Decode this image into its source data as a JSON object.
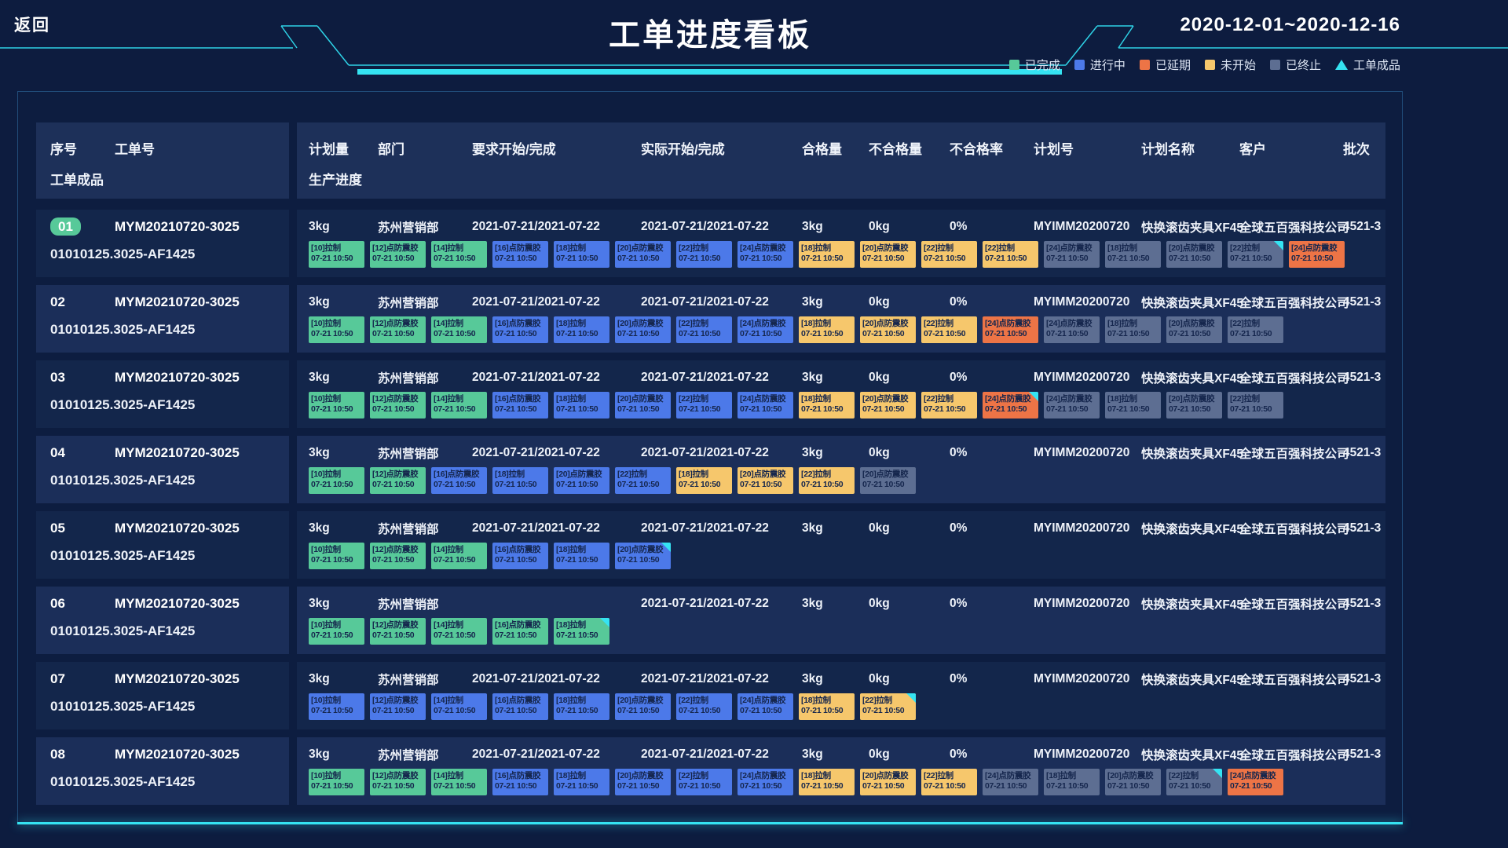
{
  "header": {
    "back": "返回",
    "title": "工单进度看板",
    "date_range": "2020-12-01~2020-12-16"
  },
  "legend": [
    {
      "label": "已完成",
      "color": "#57c999",
      "shape": "square"
    },
    {
      "label": "进行中",
      "color": "#4c79e9",
      "shape": "square"
    },
    {
      "label": "已延期",
      "color": "#ed7446",
      "shape": "square"
    },
    {
      "label": "未开始",
      "color": "#f6c76c",
      "shape": "square"
    },
    {
      "label": "已终止",
      "color": "#5d6e92",
      "shape": "square"
    },
    {
      "label": "工单成品",
      "color": "#35e3f2",
      "shape": "triangle"
    }
  ],
  "table": {
    "left_headers": {
      "seq": "序号",
      "order_no": "工单号",
      "product": "工单成品"
    },
    "progress_header": "生产进度",
    "columns": [
      {
        "key": "plan_qty",
        "label": "计划量"
      },
      {
        "key": "dept",
        "label": "部门"
      },
      {
        "key": "required",
        "label": "要求开始/完成"
      },
      {
        "key": "actual",
        "label": "实际开始/完成"
      },
      {
        "key": "qualified",
        "label": "合格量"
      },
      {
        "key": "unqualified",
        "label": "不合格量"
      },
      {
        "key": "unqualified_rate",
        "label": "不合格率"
      },
      {
        "key": "plan_no",
        "label": "计划号"
      },
      {
        "key": "plan_name",
        "label": "计划名称"
      },
      {
        "key": "customer",
        "label": "客户"
      },
      {
        "key": "batch",
        "label": "批次"
      }
    ],
    "status_colors": {
      "done": "#57c999",
      "doing": "#4c79e9",
      "delayed": "#ed7446",
      "notstarted": "#f6c76c",
      "terminated": "#5d6e92"
    },
    "marker_color": "#35e3f2",
    "step_time": "07-21 10:50",
    "rows": [
      {
        "seq": "01",
        "highlight": true,
        "order_no": "MYM20210720-3025",
        "product": "01010125.3025-AF1425",
        "plan_qty": "3kg",
        "dept": "苏州营销部",
        "required": "2021-07-21/2021-07-22",
        "actual": "2021-07-21/2021-07-22",
        "qualified": "3kg",
        "unqualified": "0kg",
        "unqualified_rate": "0%",
        "plan_no": "MYIMM20200720",
        "plan_name": "快换滚齿夹具XF45",
        "customer": "全球五百强科技公司",
        "batch": "4521-3",
        "steps": [
          {
            "name": "[10]拉制",
            "status": "done"
          },
          {
            "name": "[12]点防震胶",
            "status": "done"
          },
          {
            "name": "[14]拉制",
            "status": "done"
          },
          {
            "name": "[16]点防震胶",
            "status": "doing"
          },
          {
            "name": "[18]拉制",
            "status": "doing"
          },
          {
            "name": "[20]点防震胶",
            "status": "doing"
          },
          {
            "name": "[22]拉制",
            "status": "doing"
          },
          {
            "name": "[24]点防震胶",
            "status": "doing"
          },
          {
            "name": "[18]拉制",
            "status": "notstarted"
          },
          {
            "name": "[20]点防震胶",
            "status": "notstarted"
          },
          {
            "name": "[22]拉制",
            "status": "notstarted"
          },
          {
            "name": "[22]拉制",
            "status": "notstarted"
          },
          {
            "name": "[24]点防震胶",
            "status": "terminated"
          },
          {
            "name": "[18]拉制",
            "status": "terminated"
          },
          {
            "name": "[20]点防震胶",
            "status": "terminated"
          },
          {
            "name": "[22]拉制",
            "status": "terminated",
            "marker": true
          },
          {
            "name": "[24]点防震胶",
            "status": "delayed"
          }
        ]
      },
      {
        "seq": "02",
        "highlight": false,
        "order_no": "MYM20210720-3025",
        "product": "01010125.3025-AF1425",
        "plan_qty": "3kg",
        "dept": "苏州营销部",
        "required": "2021-07-21/2021-07-22",
        "actual": "2021-07-21/2021-07-22",
        "qualified": "3kg",
        "unqualified": "0kg",
        "unqualified_rate": "0%",
        "plan_no": "MYIMM20200720",
        "plan_name": "快换滚齿夹具XF45",
        "customer": "全球五百强科技公司",
        "batch": "4521-3",
        "steps": [
          {
            "name": "[10]拉制",
            "status": "done"
          },
          {
            "name": "[12]点防震胶",
            "status": "done"
          },
          {
            "name": "[14]拉制",
            "status": "done"
          },
          {
            "name": "[16]点防震胶",
            "status": "doing"
          },
          {
            "name": "[18]拉制",
            "status": "doing"
          },
          {
            "name": "[20]点防震胶",
            "status": "doing"
          },
          {
            "name": "[22]拉制",
            "status": "doing"
          },
          {
            "name": "[24]点防震胶",
            "status": "doing"
          },
          {
            "name": "[18]拉制",
            "status": "notstarted"
          },
          {
            "name": "[20]点防震胶",
            "status": "notstarted"
          },
          {
            "name": "[22]拉制",
            "status": "notstarted"
          },
          {
            "name": "[24]点防震胶",
            "status": "delayed"
          },
          {
            "name": "[24]点防震胶",
            "status": "terminated"
          },
          {
            "name": "[18]拉制",
            "status": "terminated"
          },
          {
            "name": "[20]点防震胶",
            "status": "terminated"
          },
          {
            "name": "[22]拉制",
            "status": "terminated"
          }
        ]
      },
      {
        "seq": "03",
        "highlight": false,
        "order_no": "MYM20210720-3025",
        "product": "01010125.3025-AF1425",
        "plan_qty": "3kg",
        "dept": "苏州营销部",
        "required": "2021-07-21/2021-07-22",
        "actual": "2021-07-21/2021-07-22",
        "qualified": "3kg",
        "unqualified": "0kg",
        "unqualified_rate": "0%",
        "plan_no": "MYIMM20200720",
        "plan_name": "快换滚齿夹具XF45",
        "customer": "全球五百强科技公司",
        "batch": "4521-3",
        "steps": [
          {
            "name": "[10]拉制",
            "status": "done"
          },
          {
            "name": "[12]点防震胶",
            "status": "done"
          },
          {
            "name": "[14]拉制",
            "status": "done"
          },
          {
            "name": "[16]点防震胶",
            "status": "doing"
          },
          {
            "name": "[18]拉制",
            "status": "doing"
          },
          {
            "name": "[20]点防震胶",
            "status": "doing"
          },
          {
            "name": "[22]拉制",
            "status": "doing"
          },
          {
            "name": "[24]点防震胶",
            "status": "doing"
          },
          {
            "name": "[18]拉制",
            "status": "notstarted"
          },
          {
            "name": "[20]点防震胶",
            "status": "notstarted"
          },
          {
            "name": "[22]拉制",
            "status": "notstarted"
          },
          {
            "name": "[24]点防震胶",
            "status": "delayed",
            "marker": true
          },
          {
            "name": "[24]点防震胶",
            "status": "terminated"
          },
          {
            "name": "[18]拉制",
            "status": "terminated"
          },
          {
            "name": "[20]点防震胶",
            "status": "terminated"
          },
          {
            "name": "[22]拉制",
            "status": "terminated"
          }
        ]
      },
      {
        "seq": "04",
        "highlight": false,
        "order_no": "MYM20210720-3025",
        "product": "01010125.3025-AF1425",
        "plan_qty": "3kg",
        "dept": "苏州营销部",
        "required": "2021-07-21/2021-07-22",
        "actual": "2021-07-21/2021-07-22",
        "qualified": "3kg",
        "unqualified": "0kg",
        "unqualified_rate": "0%",
        "plan_no": "MYIMM20200720",
        "plan_name": "快换滚齿夹具XF45",
        "customer": "全球五百强科技公司",
        "batch": "4521-3",
        "steps": [
          {
            "name": "[10]拉制",
            "status": "done"
          },
          {
            "name": "[12]点防震胶",
            "status": "done"
          },
          {
            "name": "[16]点防震胶",
            "status": "doing"
          },
          {
            "name": "[18]拉制",
            "status": "doing"
          },
          {
            "name": "[20]点防震胶",
            "status": "doing"
          },
          {
            "name": "[22]拉制",
            "status": "doing"
          },
          {
            "name": "[18]拉制",
            "status": "notstarted"
          },
          {
            "name": "[20]点防震胶",
            "status": "notstarted"
          },
          {
            "name": "[22]拉制",
            "status": "notstarted"
          },
          {
            "name": "[20]点防震胶",
            "status": "terminated"
          }
        ]
      },
      {
        "seq": "05",
        "highlight": false,
        "order_no": "MYM20210720-3025",
        "product": "01010125.3025-AF1425",
        "plan_qty": "3kg",
        "dept": "苏州营销部",
        "required": "2021-07-21/2021-07-22",
        "actual": "2021-07-21/2021-07-22",
        "qualified": "3kg",
        "unqualified": "0kg",
        "unqualified_rate": "0%",
        "plan_no": "MYIMM20200720",
        "plan_name": "快换滚齿夹具XF45",
        "customer": "全球五百强科技公司",
        "batch": "4521-3",
        "steps": [
          {
            "name": "[10]拉制",
            "status": "done"
          },
          {
            "name": "[12]点防震胶",
            "status": "done"
          },
          {
            "name": "[14]拉制",
            "status": "done"
          },
          {
            "name": "[16]点防震胶",
            "status": "doing"
          },
          {
            "name": "[18]拉制",
            "status": "doing"
          },
          {
            "name": "[20]点防震胶",
            "status": "doing",
            "marker": true
          }
        ]
      },
      {
        "seq": "06",
        "highlight": false,
        "order_no": "MYM20210720-3025",
        "product": "01010125.3025-AF1425",
        "plan_qty": "3kg",
        "dept": "苏州营销部",
        "required": "",
        "actual": "2021-07-21/2021-07-22",
        "qualified": "3kg",
        "unqualified": "0kg",
        "unqualified_rate": "0%",
        "plan_no": "MYIMM20200720",
        "plan_name": "快换滚齿夹具XF45",
        "customer": "全球五百强科技公司",
        "batch": "4521-3",
        "steps": [
          {
            "name": "[10]拉制",
            "status": "done"
          },
          {
            "name": "[12]点防震胶",
            "status": "done"
          },
          {
            "name": "[14]拉制",
            "status": "done"
          },
          {
            "name": "[16]点防震胶",
            "status": "done"
          },
          {
            "name": "[18]拉制",
            "status": "done",
            "marker": true
          }
        ]
      },
      {
        "seq": "07",
        "highlight": false,
        "order_no": "MYM20210720-3025",
        "product": "01010125.3025-AF1425",
        "plan_qty": "3kg",
        "dept": "苏州营销部",
        "required": "2021-07-21/2021-07-22",
        "actual": "2021-07-21/2021-07-22",
        "qualified": "3kg",
        "unqualified": "0kg",
        "unqualified_rate": "0%",
        "plan_no": "MYIMM20200720",
        "plan_name": "快换滚齿夹具XF45",
        "customer": "全球五百强科技公司",
        "batch": "4521-3",
        "steps": [
          {
            "name": "[10]拉制",
            "status": "doing"
          },
          {
            "name": "[12]点防震胶",
            "status": "doing"
          },
          {
            "name": "[14]拉制",
            "status": "doing"
          },
          {
            "name": "[16]点防震胶",
            "status": "doing"
          },
          {
            "name": "[18]拉制",
            "status": "doing"
          },
          {
            "name": "[20]点防震胶",
            "status": "doing"
          },
          {
            "name": "[22]拉制",
            "status": "doing"
          },
          {
            "name": "[24]点防震胶",
            "status": "doing"
          },
          {
            "name": "[18]拉制",
            "status": "notstarted"
          },
          {
            "name": "[22]拉制",
            "status": "notstarted",
            "marker": true
          }
        ]
      },
      {
        "seq": "08",
        "highlight": false,
        "order_no": "MYM20210720-3025",
        "product": "01010125.3025-AF1425",
        "plan_qty": "3kg",
        "dept": "苏州营销部",
        "required": "2021-07-21/2021-07-22",
        "actual": "2021-07-21/2021-07-22",
        "qualified": "3kg",
        "unqualified": "0kg",
        "unqualified_rate": "0%",
        "plan_no": "MYIMM20200720",
        "plan_name": "快换滚齿夹具XF45",
        "customer": "全球五百强科技公司",
        "batch": "4521-3",
        "steps": [
          {
            "name": "[10]拉制",
            "status": "done"
          },
          {
            "name": "[12]点防震胶",
            "status": "done"
          },
          {
            "name": "[14]拉制",
            "status": "done"
          },
          {
            "name": "[16]点防震胶",
            "status": "doing"
          },
          {
            "name": "[18]拉制",
            "status": "doing"
          },
          {
            "name": "[20]点防震胶",
            "status": "doing"
          },
          {
            "name": "[22]拉制",
            "status": "doing"
          },
          {
            "name": "[24]点防震胶",
            "status": "doing"
          },
          {
            "name": "[18]拉制",
            "status": "notstarted"
          },
          {
            "name": "[20]点防震胶",
            "status": "notstarted"
          },
          {
            "name": "[22]拉制",
            "status": "notstarted"
          },
          {
            "name": "[24]点防震胶",
            "status": "terminated"
          },
          {
            "name": "[18]拉制",
            "status": "terminated"
          },
          {
            "name": "[20]点防震胶",
            "status": "terminated"
          },
          {
            "name": "[22]拉制",
            "status": "terminated",
            "marker": true
          },
          {
            "name": "[24]点防震胶",
            "status": "delayed"
          }
        ]
      }
    ]
  }
}
